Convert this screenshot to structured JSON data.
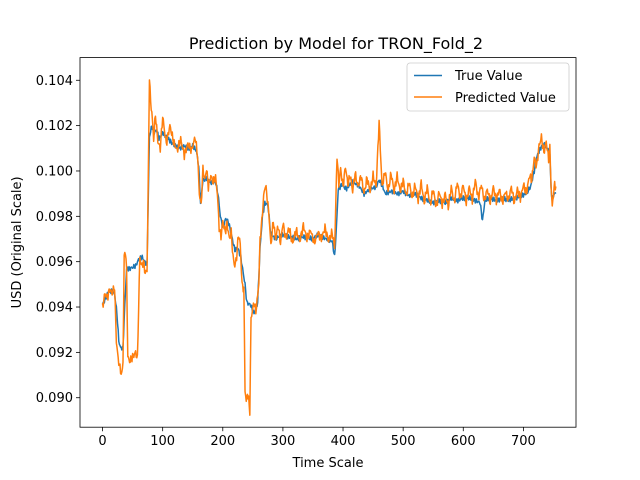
{
  "chart_data": {
    "type": "line",
    "title": "Prediction by Model for TRON_Fold_2",
    "xlabel": "Time Scale",
    "ylabel": "USD (Original Scale)",
    "xlim": [
      -37.5,
      787.5
    ],
    "ylim": [
      0.0887,
      0.105
    ],
    "xticks": [
      0,
      100,
      200,
      300,
      400,
      500,
      600,
      700
    ],
    "yticks": [
      0.09,
      0.092,
      0.094,
      0.096,
      0.098,
      0.1,
      0.102,
      0.104
    ],
    "ytick_labels": [
      "0.090",
      "0.092",
      "0.094",
      "0.096",
      "0.098",
      "0.100",
      "0.102",
      "0.104"
    ],
    "grid": false,
    "legend_position": "top-right",
    "series": [
      {
        "name": "True Value",
        "color": "#1f77b4",
        "anchors": [
          [
            0,
            0.0941
          ],
          [
            5,
            0.0944
          ],
          [
            10,
            0.0947
          ],
          [
            15,
            0.0947
          ],
          [
            20,
            0.0946
          ],
          [
            24,
            0.0937
          ],
          [
            27,
            0.0925
          ],
          [
            30,
            0.0922
          ],
          [
            34,
            0.0922
          ],
          [
            36,
            0.0935
          ],
          [
            40,
            0.0957
          ],
          [
            45,
            0.0957
          ],
          [
            55,
            0.0958
          ],
          [
            60,
            0.0961
          ],
          [
            66,
            0.0962
          ],
          [
            70,
            0.096
          ],
          [
            74,
            0.0959
          ],
          [
            76,
            0.0987
          ],
          [
            78,
            0.1015
          ],
          [
            82,
            0.102
          ],
          [
            86,
            0.1017
          ],
          [
            90,
            0.1018
          ],
          [
            94,
            0.1014
          ],
          [
            100,
            0.1017
          ],
          [
            110,
            0.1014
          ],
          [
            120,
            0.1011
          ],
          [
            128,
            0.101
          ],
          [
            136,
            0.1011
          ],
          [
            144,
            0.101
          ],
          [
            150,
            0.1011
          ],
          [
            156,
            0.1009
          ],
          [
            160,
            0.1002
          ],
          [
            163,
            0.0986
          ],
          [
            167,
            0.0996
          ],
          [
            172,
            0.0997
          ],
          [
            180,
            0.0995
          ],
          [
            188,
            0.0995
          ],
          [
            192,
            0.099
          ],
          [
            196,
            0.098
          ],
          [
            200,
            0.0975
          ],
          [
            205,
            0.0979
          ],
          [
            210,
            0.0977
          ],
          [
            215,
            0.0971
          ],
          [
            220,
            0.0965
          ],
          [
            225,
            0.0966
          ],
          [
            230,
            0.0962
          ],
          [
            234,
            0.0955
          ],
          [
            237,
            0.095
          ],
          [
            240,
            0.0942
          ],
          [
            246,
            0.0941
          ],
          [
            252,
            0.0937
          ],
          [
            258,
            0.0942
          ],
          [
            262,
            0.0966
          ],
          [
            266,
            0.098
          ],
          [
            270,
            0.0986
          ],
          [
            275,
            0.0985
          ],
          [
            280,
            0.0972
          ],
          [
            288,
            0.097
          ],
          [
            298,
            0.0972
          ],
          [
            310,
            0.0971
          ],
          [
            322,
            0.097
          ],
          [
            335,
            0.0971
          ],
          [
            348,
            0.097
          ],
          [
            360,
            0.0972
          ],
          [
            372,
            0.097
          ],
          [
            382,
            0.0969
          ],
          [
            386,
            0.0962
          ],
          [
            389,
            0.0975
          ],
          [
            392,
            0.0992
          ],
          [
            398,
            0.0994
          ],
          [
            405,
            0.0992
          ],
          [
            415,
            0.0995
          ],
          [
            425,
            0.0994
          ],
          [
            435,
            0.099
          ],
          [
            445,
            0.0992
          ],
          [
            455,
            0.0993
          ],
          [
            460,
            0.0996
          ],
          [
            465,
            0.0994
          ],
          [
            470,
            0.099
          ],
          [
            480,
            0.0991
          ],
          [
            490,
            0.099
          ],
          [
            500,
            0.0991
          ],
          [
            510,
            0.0989
          ],
          [
            520,
            0.099
          ],
          [
            530,
            0.0988
          ],
          [
            540,
            0.0987
          ],
          [
            550,
            0.0986
          ],
          [
            560,
            0.0987
          ],
          [
            570,
            0.0986
          ],
          [
            580,
            0.0988
          ],
          [
            590,
            0.0987
          ],
          [
            600,
            0.0988
          ],
          [
            610,
            0.0988
          ],
          [
            620,
            0.0987
          ],
          [
            628,
            0.0986
          ],
          [
            632,
            0.0978
          ],
          [
            636,
            0.0987
          ],
          [
            645,
            0.0988
          ],
          [
            655,
            0.0987
          ],
          [
            665,
            0.0988
          ],
          [
            675,
            0.0987
          ],
          [
            685,
            0.0988
          ],
          [
            695,
            0.0989
          ],
          [
            705,
            0.099
          ],
          [
            712,
            0.0993
          ],
          [
            718,
            0.1
          ],
          [
            722,
            0.1006
          ],
          [
            728,
            0.101
          ],
          [
            734,
            0.1012
          ],
          [
            740,
            0.101
          ],
          [
            744,
            0.1008
          ],
          [
            746,
            0.0992
          ],
          [
            748,
            0.0987
          ],
          [
            751,
            0.099
          ],
          [
            754,
            0.099
          ]
        ]
      },
      {
        "name": "Predicted Value",
        "color": "#ff7f0e",
        "anchors": [
          [
            0,
            0.094
          ],
          [
            4,
            0.0946
          ],
          [
            8,
            0.0944
          ],
          [
            12,
            0.0948
          ],
          [
            16,
            0.0946
          ],
          [
            20,
            0.0949
          ],
          [
            23,
            0.0925
          ],
          [
            26,
            0.0917
          ],
          [
            29,
            0.0913
          ],
          [
            32,
            0.091
          ],
          [
            34,
            0.0916
          ],
          [
            36,
            0.0962
          ],
          [
            38,
            0.0965
          ],
          [
            40,
            0.0956
          ],
          [
            42,
            0.0918
          ],
          [
            45,
            0.0916
          ],
          [
            50,
            0.0918
          ],
          [
            55,
            0.092
          ],
          [
            58,
            0.0917
          ],
          [
            62,
            0.0962
          ],
          [
            65,
            0.0958
          ],
          [
            68,
            0.096
          ],
          [
            71,
            0.0955
          ],
          [
            74,
            0.0956
          ],
          [
            76,
            0.0995
          ],
          [
            78,
            0.1042
          ],
          [
            80,
            0.103
          ],
          [
            82,
            0.1026
          ],
          [
            85,
            0.1014
          ],
          [
            88,
            0.1025
          ],
          [
            92,
            0.1013
          ],
          [
            96,
            0.101
          ],
          [
            100,
            0.1024
          ],
          [
            106,
            0.1012
          ],
          [
            112,
            0.102
          ],
          [
            118,
            0.1013
          ],
          [
            124,
            0.1009
          ],
          [
            130,
            0.1014
          ],
          [
            136,
            0.1007
          ],
          [
            142,
            0.1012
          ],
          [
            148,
            0.1009
          ],
          [
            154,
            0.1015
          ],
          [
            158,
            0.1007
          ],
          [
            161,
            0.099
          ],
          [
            164,
            0.0985
          ],
          [
            167,
            0.1001
          ],
          [
            170,
            0.0996
          ],
          [
            173,
            0.1001
          ],
          [
            176,
            0.0993
          ],
          [
            180,
            0.0998
          ],
          [
            184,
            0.0995
          ],
          [
            188,
            0.0997
          ],
          [
            191,
            0.099
          ],
          [
            194,
            0.0975
          ],
          [
            197,
            0.0971
          ],
          [
            200,
            0.0978
          ],
          [
            204,
            0.0973
          ],
          [
            207,
            0.0977
          ],
          [
            211,
            0.097
          ],
          [
            214,
            0.0973
          ],
          [
            217,
            0.0962
          ],
          [
            220,
            0.0958
          ],
          [
            223,
            0.0962
          ],
          [
            226,
            0.0972
          ],
          [
            229,
            0.0968
          ],
          [
            232,
            0.095
          ],
          [
            235,
            0.0948
          ],
          [
            237,
            0.0904
          ],
          [
            239,
            0.0898
          ],
          [
            241,
            0.0902
          ],
          [
            243,
            0.0899
          ],
          [
            245,
            0.0894
          ],
          [
            247,
            0.0935
          ],
          [
            249,
            0.0938
          ],
          [
            252,
            0.0942
          ],
          [
            255,
            0.0938
          ],
          [
            258,
            0.0945
          ],
          [
            260,
            0.0951
          ],
          [
            262,
            0.097
          ],
          [
            265,
            0.0978
          ],
          [
            268,
            0.0989
          ],
          [
            271,
            0.0994
          ],
          [
            274,
            0.0988
          ],
          [
            277,
            0.098
          ],
          [
            280,
            0.0967
          ],
          [
            284,
            0.0978
          ],
          [
            288,
            0.097
          ],
          [
            292,
            0.0976
          ],
          [
            296,
            0.0968
          ],
          [
            300,
            0.0977
          ],
          [
            305,
            0.097
          ],
          [
            310,
            0.0975
          ],
          [
            316,
            0.0968
          ],
          [
            322,
            0.0974
          ],
          [
            328,
            0.0969
          ],
          [
            334,
            0.0976
          ],
          [
            340,
            0.097
          ],
          [
            346,
            0.0974
          ],
          [
            352,
            0.0968
          ],
          [
            358,
            0.0973
          ],
          [
            364,
            0.097
          ],
          [
            370,
            0.0975
          ],
          [
            376,
            0.0969
          ],
          [
            382,
            0.0973
          ],
          [
            386,
            0.0966
          ],
          [
            388,
            0.0986
          ],
          [
            390,
            0.1007
          ],
          [
            393,
            0.0994
          ],
          [
            396,
            0.1001
          ],
          [
            400,
            0.0993
          ],
          [
            404,
            0.1002
          ],
          [
            408,
            0.0994
          ],
          [
            412,
            0.0998
          ],
          [
            416,
            0.0991
          ],
          [
            420,
            0.0999
          ],
          [
            425,
            0.0993
          ],
          [
            430,
            0.0998
          ],
          [
            435,
            0.099
          ],
          [
            440,
            0.0997
          ],
          [
            445,
            0.0991
          ],
          [
            450,
            0.0998
          ],
          [
            455,
            0.0993
          ],
          [
            458,
            0.101
          ],
          [
            460,
            0.1022
          ],
          [
            462,
            0.101
          ],
          [
            465,
            0.0993
          ],
          [
            470,
            0.1
          ],
          [
            475,
            0.0991
          ],
          [
            480,
            0.0999
          ],
          [
            485,
            0.0991
          ],
          [
            490,
            0.0998
          ],
          [
            495,
            0.0991
          ],
          [
            500,
            0.0996
          ],
          [
            505,
            0.0989
          ],
          [
            510,
            0.0995
          ],
          [
            515,
            0.0988
          ],
          [
            520,
            0.0994
          ],
          [
            525,
            0.0987
          ],
          [
            530,
            0.0995
          ],
          [
            535,
            0.0986
          ],
          [
            540,
            0.0993
          ],
          [
            545,
            0.0985
          ],
          [
            550,
            0.0992
          ],
          [
            555,
            0.0984
          ],
          [
            560,
            0.0991
          ],
          [
            565,
            0.0985
          ],
          [
            570,
            0.099
          ],
          [
            575,
            0.0984
          ],
          [
            580,
            0.0993
          ],
          [
            585,
            0.0986
          ],
          [
            590,
            0.0995
          ],
          [
            595,
            0.0988
          ],
          [
            600,
            0.0994
          ],
          [
            605,
            0.0986
          ],
          [
            610,
            0.0993
          ],
          [
            615,
            0.0987
          ],
          [
            620,
            0.0996
          ],
          [
            625,
            0.0988
          ],
          [
            630,
            0.0994
          ],
          [
            635,
            0.0987
          ],
          [
            640,
            0.0992
          ],
          [
            645,
            0.0986
          ],
          [
            650,
            0.0993
          ],
          [
            655,
            0.0987
          ],
          [
            660,
            0.0992
          ],
          [
            665,
            0.0986
          ],
          [
            670,
            0.0991
          ],
          [
            675,
            0.0987
          ],
          [
            680,
            0.0993
          ],
          [
            685,
            0.0986
          ],
          [
            690,
            0.0992
          ],
          [
            695,
            0.0988
          ],
          [
            700,
            0.0994
          ],
          [
            705,
            0.099
          ],
          [
            710,
            0.0998
          ],
          [
            714,
            0.0996
          ],
          [
            718,
            0.1006
          ],
          [
            722,
            0.1002
          ],
          [
            726,
            0.1011
          ],
          [
            730,
            0.1015
          ],
          [
            734,
            0.1008
          ],
          [
            738,
            0.1013
          ],
          [
            742,
            0.1005
          ],
          [
            744,
            0.101
          ],
          [
            746,
            0.0994
          ],
          [
            748,
            0.0984
          ],
          [
            750,
            0.099
          ],
          [
            752,
            0.0994
          ],
          [
            754,
            0.0993
          ]
        ]
      }
    ]
  }
}
